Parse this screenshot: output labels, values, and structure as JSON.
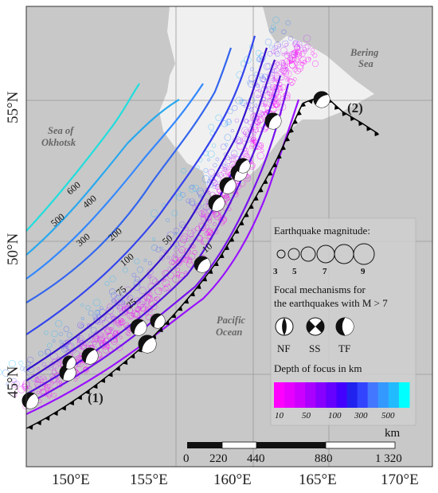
{
  "map": {
    "sea_labels": {
      "okhotsk_1": "Sea of",
      "okhotsk_2": "Okhotsk",
      "bering_1": "Bering",
      "bering_2": "Sea",
      "pacific_1": "Pacific",
      "pacific_2": "Ocean"
    },
    "lat_labels": [
      "55°N",
      "50°N",
      "45°N"
    ],
    "lon_labels": [
      "150°E",
      "155°E",
      "160°E",
      "165°E",
      "170°E"
    ],
    "contour_labels": [
      "600",
      "500",
      "400",
      "300",
      "200",
      "100",
      "75",
      "50",
      "25",
      "10"
    ],
    "profile_markers": [
      "(1)",
      "(2)"
    ]
  },
  "legend": {
    "magnitude_title": "Earthquake magnitude:",
    "magnitude_values": [
      "3",
      "5",
      "7",
      "9"
    ],
    "focal_title_1": "Focal mechanisms for",
    "focal_title_2": "the earthquakes with M > 7",
    "focal_types": [
      "NF",
      "SS",
      "TF"
    ],
    "depth_title": "Depth of focus in km",
    "depth_ticks": [
      "10",
      "50",
      "100",
      "300",
      "500"
    ],
    "depth_colors": [
      "#ff00ff",
      "#e600ff",
      "#cc00ff",
      "#aa00ff",
      "#8800ff",
      "#6600ff",
      "#4400ff",
      "#2222ee",
      "#3344ff",
      "#4477ff",
      "#3399ff",
      "#22bbff",
      "#00ffff"
    ]
  },
  "scale_bar": {
    "unit": "km",
    "ticks": [
      "0",
      "220",
      "440",
      "880",
      "1 320"
    ]
  },
  "colors": {
    "land": "#f0f0f0",
    "sea": "#c8c8c8",
    "trench": "#000000"
  }
}
